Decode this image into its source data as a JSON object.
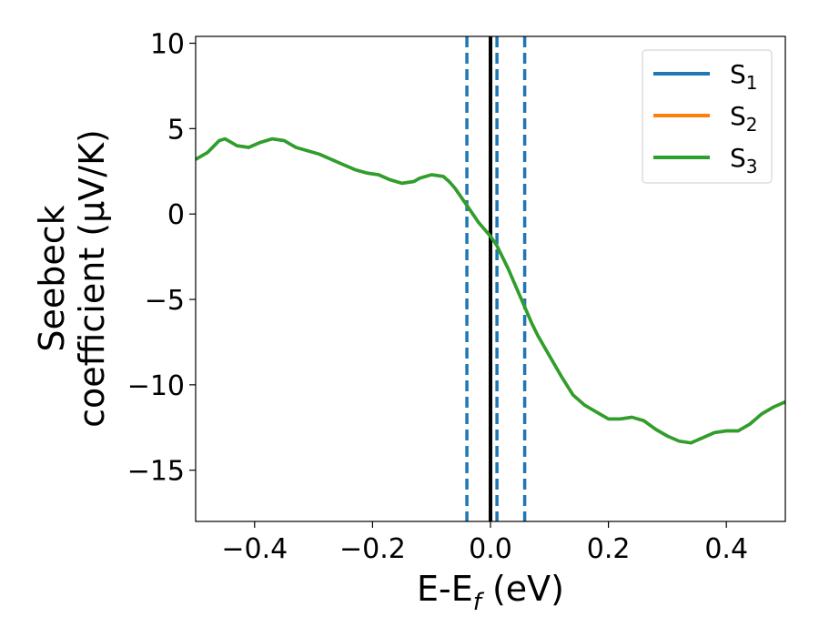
{
  "chart_data": {
    "type": "line",
    "xlabel": {
      "base": "E-E",
      "sub": "f",
      "tail": " (eV)"
    },
    "ylabel": {
      "line1": "Seebeck",
      "line2": "coefficient  (μV/K)"
    },
    "xlim": [
      -0.5,
      0.5
    ],
    "ylim": [
      -18,
      10.4
    ],
    "xticks": [
      -0.4,
      -0.2,
      0.0,
      0.2,
      0.4
    ],
    "xtick_labels": [
      "−0.4",
      "−0.2",
      "0.0",
      "0.2",
      "0.4"
    ],
    "yticks": [
      -15,
      -10,
      -5,
      0,
      5,
      10
    ],
    "ytick_labels": [
      "−15",
      "−10",
      "−5",
      "0",
      "5",
      "10"
    ],
    "legend_position": "top-right",
    "grid": false,
    "vlines": [
      {
        "x": 0.0,
        "color": "#000000",
        "style": "solid"
      },
      {
        "x": -0.04,
        "color": "#1f77b4",
        "style": "dashed"
      },
      {
        "x": 0.011,
        "color": "#1f77b4",
        "style": "dashed"
      },
      {
        "x": 0.058,
        "color": "#1f77b4",
        "style": "dashed"
      }
    ],
    "x": [
      -0.5,
      -0.48,
      -0.46,
      -0.45,
      -0.43,
      -0.41,
      -0.39,
      -0.37,
      -0.35,
      -0.33,
      -0.31,
      -0.29,
      -0.27,
      -0.25,
      -0.23,
      -0.21,
      -0.19,
      -0.17,
      -0.15,
      -0.13,
      -0.12,
      -0.1,
      -0.08,
      -0.07,
      -0.06,
      -0.05,
      -0.04,
      -0.03,
      -0.02,
      -0.01,
      0.0,
      0.01,
      0.02,
      0.03,
      0.04,
      0.05,
      0.06,
      0.07,
      0.08,
      0.1,
      0.12,
      0.14,
      0.16,
      0.18,
      0.2,
      0.22,
      0.24,
      0.26,
      0.28,
      0.3,
      0.32,
      0.34,
      0.36,
      0.38,
      0.4,
      0.42,
      0.44,
      0.46,
      0.48,
      0.5
    ],
    "series": [
      {
        "name": "S",
        "sub": "1",
        "color": "#1f77b4",
        "values": [
          3.2,
          3.6,
          4.3,
          4.4,
          4.0,
          3.9,
          4.2,
          4.4,
          4.3,
          3.9,
          3.7,
          3.5,
          3.2,
          2.9,
          2.6,
          2.4,
          2.3,
          2.0,
          1.8,
          1.9,
          2.1,
          2.3,
          2.2,
          1.9,
          1.5,
          1.0,
          0.5,
          0.0,
          -0.5,
          -0.9,
          -1.3,
          -1.8,
          -2.5,
          -3.2,
          -4.0,
          -4.8,
          -5.6,
          -6.4,
          -7.1,
          -8.3,
          -9.5,
          -10.6,
          -11.2,
          -11.6,
          -12.0,
          -12.0,
          -11.9,
          -12.1,
          -12.6,
          -13.0,
          -13.3,
          -13.4,
          -13.1,
          -12.8,
          -12.7,
          -12.7,
          -12.3,
          -11.7,
          -11.3,
          -11.0
        ]
      },
      {
        "name": "S",
        "sub": "2",
        "color": "#ff7f0e",
        "values": [
          3.2,
          3.6,
          4.3,
          4.4,
          4.0,
          3.9,
          4.2,
          4.4,
          4.3,
          3.9,
          3.7,
          3.5,
          3.2,
          2.9,
          2.6,
          2.4,
          2.3,
          2.0,
          1.8,
          1.9,
          2.1,
          2.3,
          2.2,
          1.9,
          1.5,
          1.0,
          0.5,
          0.0,
          -0.5,
          -0.9,
          -1.3,
          -1.8,
          -2.5,
          -3.2,
          -4.0,
          -4.8,
          -5.6,
          -6.4,
          -7.1,
          -8.3,
          -9.5,
          -10.6,
          -11.2,
          -11.6,
          -12.0,
          -12.0,
          -11.9,
          -12.1,
          -12.6,
          -13.0,
          -13.3,
          -13.4,
          -13.1,
          -12.8,
          -12.7,
          -12.7,
          -12.3,
          -11.7,
          -11.3,
          -11.0
        ]
      },
      {
        "name": "S",
        "sub": "3",
        "color": "#2ca02c",
        "values": [
          3.2,
          3.6,
          4.3,
          4.4,
          4.0,
          3.9,
          4.2,
          4.4,
          4.3,
          3.9,
          3.7,
          3.5,
          3.2,
          2.9,
          2.6,
          2.4,
          2.3,
          2.0,
          1.8,
          1.9,
          2.1,
          2.3,
          2.2,
          1.9,
          1.5,
          1.0,
          0.5,
          0.0,
          -0.5,
          -0.9,
          -1.3,
          -1.8,
          -2.5,
          -3.2,
          -4.0,
          -4.8,
          -5.6,
          -6.4,
          -7.1,
          -8.3,
          -9.5,
          -10.6,
          -11.2,
          -11.6,
          -12.0,
          -12.0,
          -11.9,
          -12.1,
          -12.6,
          -13.0,
          -13.3,
          -13.4,
          -13.1,
          -12.8,
          -12.7,
          -12.7,
          -12.3,
          -11.7,
          -11.3,
          -11.0
        ]
      }
    ]
  }
}
